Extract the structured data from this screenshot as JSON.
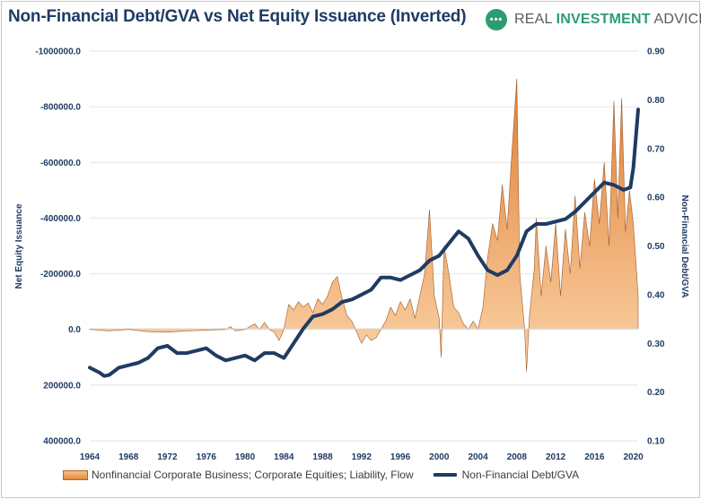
{
  "header": {
    "title": "Non-Financial Debt/GVA vs Net Equity Issuance (Inverted)",
    "brand_icon": "•••",
    "brand_prefix": "REAL ",
    "brand_accent": "INVESTMENT",
    "brand_suffix": " ADVICE"
  },
  "colors": {
    "title": "#1f3b63",
    "debt_line": "#1f3b63",
    "area_light": "#fbd3a8",
    "area_dark": "#e07f32",
    "area_edge": "#9c5a2a",
    "brand_green": "#2e9c71"
  },
  "legend": {
    "area_label": "Nonfinancial Corporate Business; Corporate Equities; Liability, Flow",
    "line_label": "Non-Financial Debt/GVA"
  },
  "chart_data": {
    "type": "area",
    "title": "Non-Financial Debt/GVA vs Net Equity Issuance (Inverted)",
    "x_ticks": [
      "1964",
      "1968",
      "1972",
      "1976",
      "1980",
      "1984",
      "1988",
      "1992",
      "1996",
      "2000",
      "2004",
      "2008",
      "2012",
      "2016",
      "2020"
    ],
    "xlim": [
      1964,
      2020.5
    ],
    "left_axis": {
      "label": "Net Equity Issuance",
      "inverted": true,
      "ylim": [
        400000,
        -1000000
      ],
      "ticks": [
        "-1000000.0",
        "-800000.0",
        "-600000.0",
        "-400000.0",
        "-200000.0",
        "0.0",
        "200000.0",
        "400000.0"
      ]
    },
    "right_axis": {
      "label": "Non-Financial Debt/GVA",
      "ylim": [
        0.1,
        0.9
      ],
      "ticks": [
        "0.90",
        "0.80",
        "0.70",
        "0.60",
        "0.50",
        "0.40",
        "0.30",
        "0.20",
        "0.10"
      ]
    },
    "legend_position": "bottom",
    "grid": true,
    "series": [
      {
        "name": "Nonfinancial Corporate Business; Corporate Equities; Liability, Flow",
        "axis": "left",
        "type": "area",
        "points": [
          [
            1964,
            0
          ],
          [
            1966,
            5000
          ],
          [
            1968,
            0
          ],
          [
            1970,
            8000
          ],
          [
            1972,
            10000
          ],
          [
            1974,
            5000
          ],
          [
            1976,
            3000
          ],
          [
            1978,
            0
          ],
          [
            1978.5,
            -10000
          ],
          [
            1979,
            5000
          ],
          [
            1980,
            0
          ],
          [
            1981,
            -20000
          ],
          [
            1981.5,
            0
          ],
          [
            1982,
            -25000
          ],
          [
            1982.5,
            0
          ],
          [
            1983,
            10000
          ],
          [
            1983.5,
            40000
          ],
          [
            1984,
            0
          ],
          [
            1984.5,
            -90000
          ],
          [
            1985,
            -70000
          ],
          [
            1985.5,
            -100000
          ],
          [
            1986,
            -80000
          ],
          [
            1986.5,
            -95000
          ],
          [
            1987,
            -60000
          ],
          [
            1987.5,
            -110000
          ],
          [
            1988,
            -90000
          ],
          [
            1988.5,
            -120000
          ],
          [
            1989,
            -170000
          ],
          [
            1989.5,
            -190000
          ],
          [
            1990,
            -110000
          ],
          [
            1990.5,
            -50000
          ],
          [
            1991,
            -30000
          ],
          [
            1991.5,
            10000
          ],
          [
            1992,
            50000
          ],
          [
            1992.5,
            20000
          ],
          [
            1993,
            40000
          ],
          [
            1993.5,
            30000
          ],
          [
            1994,
            0
          ],
          [
            1994.5,
            -30000
          ],
          [
            1995,
            -80000
          ],
          [
            1995.5,
            -50000
          ],
          [
            1996,
            -100000
          ],
          [
            1996.5,
            -70000
          ],
          [
            1997,
            -110000
          ],
          [
            1997.5,
            -40000
          ],
          [
            1998,
            -120000
          ],
          [
            1998.5,
            -200000
          ],
          [
            1999,
            -430000
          ],
          [
            1999.5,
            -120000
          ],
          [
            2000,
            -40000
          ],
          [
            2000.2,
            100000
          ],
          [
            2000.5,
            -300000
          ],
          [
            2001,
            -200000
          ],
          [
            2001.5,
            -80000
          ],
          [
            2002,
            -60000
          ],
          [
            2002.5,
            -20000
          ],
          [
            2003,
            0
          ],
          [
            2003.5,
            -30000
          ],
          [
            2004,
            0
          ],
          [
            2004.5,
            -80000
          ],
          [
            2005,
            -260000
          ],
          [
            2005.5,
            -380000
          ],
          [
            2006,
            -320000
          ],
          [
            2006.5,
            -520000
          ],
          [
            2007,
            -360000
          ],
          [
            2007.5,
            -640000
          ],
          [
            2008,
            -900000
          ],
          [
            2008.3,
            -200000
          ],
          [
            2008.8,
            0
          ],
          [
            2009,
            150000
          ],
          [
            2009.3,
            -50000
          ],
          [
            2009.8,
            -220000
          ],
          [
            2010,
            -400000
          ],
          [
            2010.5,
            -120000
          ],
          [
            2011,
            -300000
          ],
          [
            2011.5,
            -170000
          ],
          [
            2012,
            -380000
          ],
          [
            2012.5,
            -120000
          ],
          [
            2013,
            -360000
          ],
          [
            2013.5,
            -200000
          ],
          [
            2014,
            -480000
          ],
          [
            2014.5,
            -220000
          ],
          [
            2015,
            -420000
          ],
          [
            2015.5,
            -300000
          ],
          [
            2016,
            -540000
          ],
          [
            2016.5,
            -380000
          ],
          [
            2017,
            -600000
          ],
          [
            2017.5,
            -300000
          ],
          [
            2018,
            -820000
          ],
          [
            2018.4,
            -400000
          ],
          [
            2018.8,
            -830000
          ],
          [
            2019.2,
            -350000
          ],
          [
            2019.6,
            -500000
          ],
          [
            2020,
            -380000
          ],
          [
            2020.5,
            -120000
          ]
        ]
      },
      {
        "name": "Non-Financial Debt/GVA",
        "axis": "right",
        "type": "line",
        "points": [
          [
            1964,
            0.25
          ],
          [
            1965,
            0.24
          ],
          [
            1965.5,
            0.233
          ],
          [
            1966,
            0.235
          ],
          [
            1967,
            0.25
          ],
          [
            1968,
            0.255
          ],
          [
            1969,
            0.26
          ],
          [
            1970,
            0.27
          ],
          [
            1971,
            0.29
          ],
          [
            1972,
            0.295
          ],
          [
            1973,
            0.28
          ],
          [
            1974,
            0.28
          ],
          [
            1975,
            0.285
          ],
          [
            1976,
            0.29
          ],
          [
            1977,
            0.275
          ],
          [
            1978,
            0.265
          ],
          [
            1979,
            0.27
          ],
          [
            1980,
            0.275
          ],
          [
            1981,
            0.265
          ],
          [
            1982,
            0.28
          ],
          [
            1983,
            0.28
          ],
          [
            1984,
            0.27
          ],
          [
            1985,
            0.3
          ],
          [
            1986,
            0.33
          ],
          [
            1987,
            0.355
          ],
          [
            1988,
            0.36
          ],
          [
            1989,
            0.37
          ],
          [
            1990,
            0.385
          ],
          [
            1991,
            0.39
          ],
          [
            1992,
            0.4
          ],
          [
            1993,
            0.41
          ],
          [
            1994,
            0.435
          ],
          [
            1995,
            0.435
          ],
          [
            1996,
            0.43
          ],
          [
            1997,
            0.44
          ],
          [
            1998,
            0.45
          ],
          [
            1999,
            0.47
          ],
          [
            2000,
            0.48
          ],
          [
            2001,
            0.505
          ],
          [
            2002,
            0.53
          ],
          [
            2003,
            0.515
          ],
          [
            2004,
            0.48
          ],
          [
            2005,
            0.45
          ],
          [
            2006,
            0.44
          ],
          [
            2007,
            0.45
          ],
          [
            2008,
            0.48
          ],
          [
            2009,
            0.53
          ],
          [
            2010,
            0.545
          ],
          [
            2011,
            0.545
          ],
          [
            2012,
            0.55
          ],
          [
            2013,
            0.555
          ],
          [
            2014,
            0.57
          ],
          [
            2015,
            0.59
          ],
          [
            2016,
            0.61
          ],
          [
            2017,
            0.63
          ],
          [
            2018,
            0.625
          ],
          [
            2019,
            0.615
          ],
          [
            2019.7,
            0.62
          ],
          [
            2020,
            0.66
          ],
          [
            2020.5,
            0.78
          ]
        ]
      }
    ]
  }
}
